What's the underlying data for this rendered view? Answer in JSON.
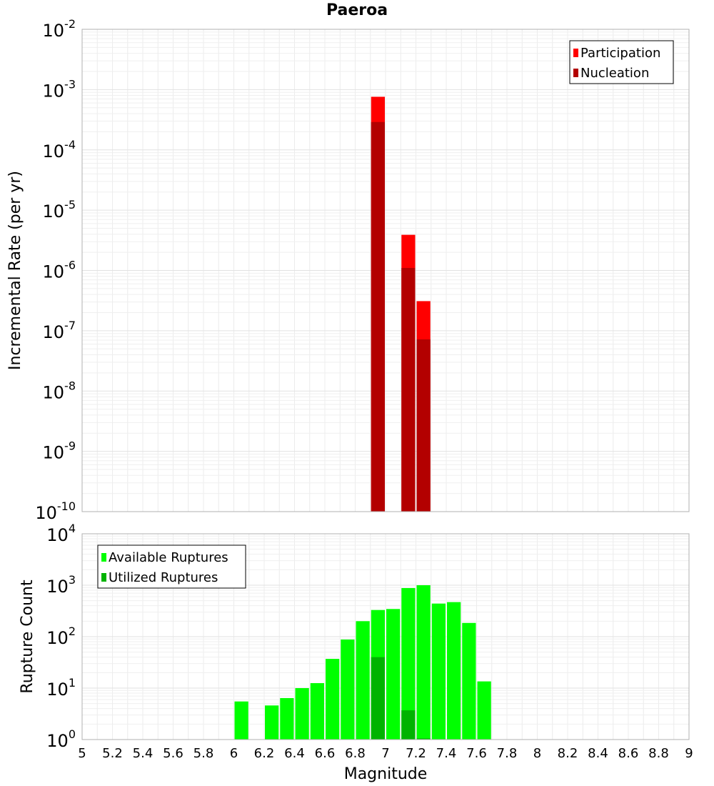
{
  "chart_data": [
    {
      "type": "bar",
      "title": "Paeroa",
      "ylabel": "Incremental Rate (per yr)",
      "xlabel": "",
      "x_range": [
        5,
        9
      ],
      "y_scale": "log",
      "y_exponent_range": [
        -10,
        -2
      ],
      "y_ticks": [
        "10^-10",
        "10^-9",
        "10^-8",
        "10^-7",
        "10^-6",
        "10^-5",
        "10^-4",
        "10^-3",
        "10^-2"
      ],
      "grid": true,
      "legend_position": "top-right",
      "legend": [
        "Participation",
        "Nucleation"
      ],
      "colors": {
        "Participation": "#ff0000",
        "Nucleation": "#b30000"
      },
      "bin_width": 0.1,
      "series": [
        {
          "name": "Participation",
          "x": [
            6.95,
            7.15,
            7.25
          ],
          "values": [
            0.00076,
            3.9e-06,
            3.1e-07
          ]
        },
        {
          "name": "Nucleation",
          "x": [
            6.95,
            7.15,
            7.25
          ],
          "values": [
            0.00029,
            1.1e-06,
            7.2e-08
          ]
        }
      ]
    },
    {
      "type": "bar",
      "title": "",
      "ylabel": "Rupture Count",
      "xlabel": "Magnitude",
      "x_range": [
        5,
        9
      ],
      "x_ticks": [
        "5",
        "5.2",
        "5.4",
        "5.6",
        "5.8",
        "6",
        "6.2",
        "6.4",
        "6.6",
        "6.8",
        "7",
        "7.2",
        "7.4",
        "7.6",
        "7.8",
        "8",
        "8.2",
        "8.4",
        "8.6",
        "8.8",
        "9"
      ],
      "y_scale": "log",
      "y_exponent_range": [
        0,
        4
      ],
      "y_ticks": [
        "10^0",
        "10^1",
        "10^2",
        "10^3",
        "10^4"
      ],
      "grid": true,
      "legend_position": "top-left",
      "legend": [
        "Available Ruptures",
        "Utilized Ruptures"
      ],
      "colors": {
        "Available Ruptures": "#00ff00",
        "Utilized Ruptures": "#00b300"
      },
      "bin_width": 0.1,
      "series": [
        {
          "name": "Available Ruptures",
          "x": [
            6.05,
            6.25,
            6.35,
            6.45,
            6.55,
            6.65,
            6.75,
            6.85,
            6.95,
            7.05,
            7.15,
            7.25,
            7.35,
            7.45,
            7.55,
            7.65
          ],
          "values": [
            5.5,
            4.6,
            6.4,
            10,
            12.5,
            37,
            88,
            200,
            330,
            345,
            880,
            1000,
            440,
            470,
            185,
            13.5
          ]
        },
        {
          "name": "Utilized Ruptures",
          "x": [
            6.95,
            7.15,
            7.25
          ],
          "values": [
            40,
            3.7,
            1.05
          ]
        }
      ]
    }
  ]
}
